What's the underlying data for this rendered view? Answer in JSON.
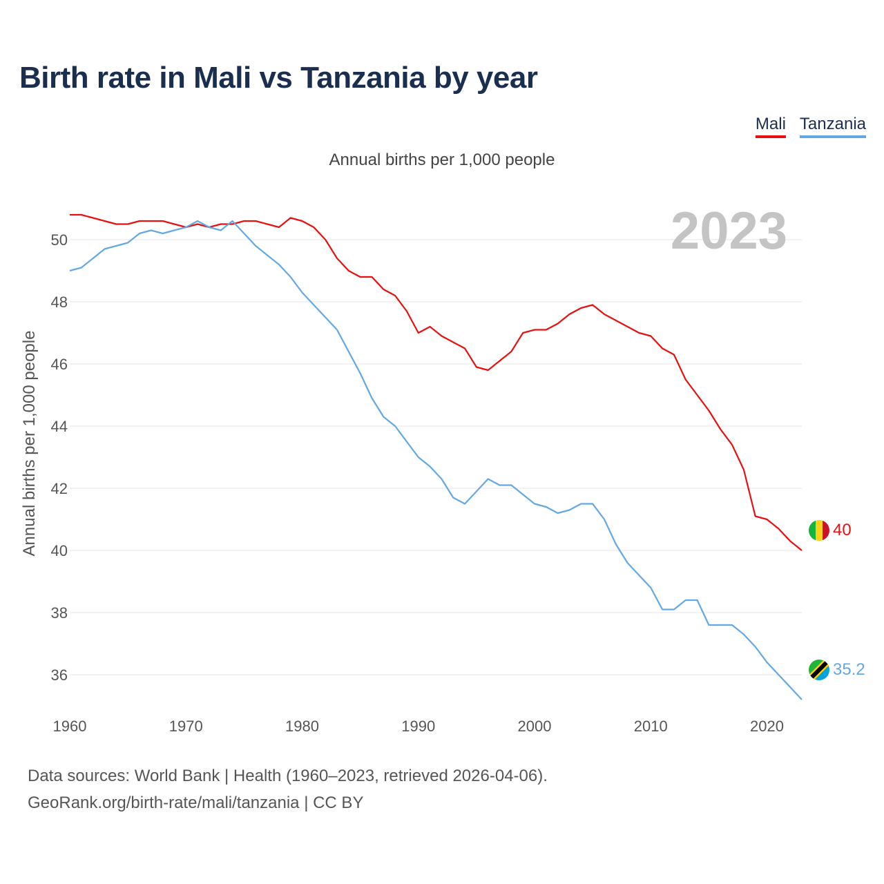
{
  "title": "Birth rate in Mali vs Tanzania by year",
  "subtitle": "Annual births per 1,000 people",
  "year_label": "2023",
  "source_line1": "Data sources: World Bank | Health (1960–2023, retrieved 2026-04-06).",
  "source_line2": "GeoRank.org/birth-rate/mali/tanzania | CC BY",
  "legend": [
    {
      "label": "Mali",
      "color": "#e8100f"
    },
    {
      "label": "Tanzania",
      "color": "#62a8e5"
    }
  ],
  "chart_data": {
    "type": "line",
    "title": "Birth rate in Mali vs Tanzania by year",
    "ylabel": "Annual births per 1,000 people",
    "xlabel": "",
    "xlim": [
      1960,
      2023
    ],
    "ylim": [
      35,
      51
    ],
    "x_ticks": [
      1960,
      1970,
      1980,
      1990,
      2000,
      2010,
      2020
    ],
    "y_ticks": [
      36,
      38,
      40,
      42,
      44,
      46,
      48,
      50
    ],
    "grid": true,
    "x": [
      1960,
      1961,
      1962,
      1963,
      1964,
      1965,
      1966,
      1967,
      1968,
      1969,
      1970,
      1971,
      1972,
      1973,
      1974,
      1975,
      1976,
      1977,
      1978,
      1979,
      1980,
      1981,
      1982,
      1983,
      1984,
      1985,
      1986,
      1987,
      1988,
      1989,
      1990,
      1991,
      1992,
      1993,
      1994,
      1995,
      1996,
      1997,
      1998,
      1999,
      2000,
      2001,
      2002,
      2003,
      2004,
      2005,
      2006,
      2007,
      2008,
      2009,
      2010,
      2011,
      2012,
      2013,
      2014,
      2015,
      2016,
      2017,
      2018,
      2019,
      2020,
      2021,
      2022,
      2023
    ],
    "series": [
      {
        "name": "Mali",
        "color": "#e8100f",
        "end_label": "40",
        "flag": "mali-flag",
        "values": [
          50.8,
          50.8,
          50.7,
          50.6,
          50.5,
          50.5,
          50.6,
          50.6,
          50.6,
          50.5,
          50.4,
          50.5,
          50.4,
          50.5,
          50.5,
          50.6,
          50.6,
          50.5,
          50.4,
          50.7,
          50.6,
          50.4,
          50.0,
          49.4,
          49.0,
          48.8,
          48.8,
          48.4,
          48.2,
          47.7,
          47.0,
          47.2,
          46.9,
          46.7,
          46.5,
          45.9,
          45.8,
          46.1,
          46.4,
          47.0,
          47.1,
          47.1,
          47.3,
          47.6,
          47.8,
          47.9,
          47.6,
          47.4,
          47.2,
          47.0,
          46.9,
          46.5,
          46.3,
          45.5,
          45.0,
          44.5,
          43.9,
          43.4,
          42.6,
          41.1,
          41.0,
          40.7,
          40.3,
          40.0
        ]
      },
      {
        "name": "Tanzania",
        "color": "#62a8e5",
        "end_label": "35.2",
        "flag": "tanzania-flag",
        "values": [
          49.0,
          49.1,
          49.4,
          49.7,
          49.8,
          49.9,
          50.2,
          50.3,
          50.2,
          50.3,
          50.4,
          50.6,
          50.4,
          50.3,
          50.6,
          50.2,
          49.8,
          49.5,
          49.2,
          48.8,
          48.3,
          47.9,
          47.5,
          47.1,
          46.4,
          45.7,
          44.9,
          44.3,
          44.0,
          43.5,
          43.0,
          42.7,
          42.3,
          41.7,
          41.5,
          41.9,
          42.3,
          42.1,
          42.1,
          41.8,
          41.5,
          41.4,
          41.2,
          41.3,
          41.5,
          41.5,
          41.0,
          40.2,
          39.6,
          39.2,
          38.8,
          38.1,
          38.1,
          38.4,
          38.4,
          37.6,
          37.6,
          37.6,
          37.3,
          36.9,
          36.4,
          36.0,
          35.6,
          35.2
        ]
      }
    ]
  }
}
